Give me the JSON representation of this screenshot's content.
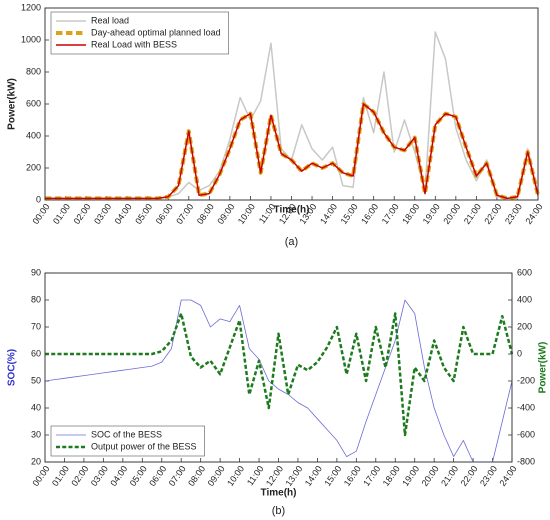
{
  "chart_data": [
    {
      "type": "line",
      "caption": "(a)",
      "x_label": "Time(h)",
      "y_label": "Power(kW)",
      "legend": "upper left",
      "x": [
        0,
        0.5,
        1,
        1.5,
        2,
        2.5,
        3,
        3.5,
        4,
        4.5,
        5,
        5.5,
        6,
        6.5,
        7,
        7.5,
        8,
        8.5,
        9,
        9.5,
        10,
        10.5,
        11,
        11.5,
        12,
        12.5,
        13,
        13.5,
        14,
        14.5,
        15,
        15.5,
        16,
        16.5,
        17,
        17.5,
        18,
        18.5,
        19,
        19.5,
        20,
        20.5,
        21,
        21.5,
        22,
        22.5,
        23,
        23.5,
        24
      ],
      "xlim": [
        0,
        24
      ],
      "xticks": [
        {
          "value": 0,
          "label": "00:00"
        },
        {
          "value": 1,
          "label": "01:00"
        },
        {
          "value": 2,
          "label": "02:00"
        },
        {
          "value": 3,
          "label": "03:00"
        },
        {
          "value": 4,
          "label": "04:00"
        },
        {
          "value": 5,
          "label": "05:00"
        },
        {
          "value": 6,
          "label": "06:00"
        },
        {
          "value": 7,
          "label": "07:00"
        },
        {
          "value": 8,
          "label": "08:00"
        },
        {
          "value": 9,
          "label": "09:00"
        },
        {
          "value": 10,
          "label": "10:00"
        },
        {
          "value": 11,
          "label": "11:00"
        },
        {
          "value": 12,
          "label": "12:00"
        },
        {
          "value": 13,
          "label": "13:00"
        },
        {
          "value": 14,
          "label": "14:00"
        },
        {
          "value": 15,
          "label": "15:00"
        },
        {
          "value": 16,
          "label": "16:00"
        },
        {
          "value": 17,
          "label": "17:00"
        },
        {
          "value": 18,
          "label": "18:00"
        },
        {
          "value": 19,
          "label": "19:00"
        },
        {
          "value": 20,
          "label": "20:00"
        },
        {
          "value": 21,
          "label": "21:00"
        },
        {
          "value": 22,
          "label": "22:00"
        },
        {
          "value": 23,
          "label": "23:00"
        },
        {
          "value": 24,
          "label": "24:00"
        }
      ],
      "ylim": [
        0,
        1200
      ],
      "yticks": [
        0,
        200,
        400,
        600,
        800,
        1000,
        1200
      ],
      "series": [
        {
          "name": "Real load",
          "color": "#c8c8c8",
          "width": 1.5,
          "dashed": false,
          "values": [
            10,
            10,
            10,
            10,
            10,
            10,
            10,
            10,
            10,
            10,
            10,
            10,
            20,
            40,
            110,
            60,
            90,
            180,
            380,
            640,
            500,
            620,
            980,
            320,
            250,
            470,
            320,
            250,
            330,
            90,
            80,
            640,
            420,
            800,
            300,
            500,
            300,
            60,
            1050,
            880,
            450,
            250,
            120,
            250,
            20,
            10,
            10,
            320,
            30
          ]
        },
        {
          "name": "Day-ahead optimal planned load",
          "color": "#d9a21b",
          "width": 4,
          "dashed": true,
          "values": [
            10,
            10,
            10,
            10,
            10,
            10,
            10,
            10,
            10,
            10,
            10,
            10,
            20,
            90,
            430,
            30,
            40,
            160,
            320,
            500,
            540,
            170,
            530,
            290,
            250,
            180,
            230,
            200,
            230,
            170,
            150,
            600,
            550,
            420,
            330,
            310,
            390,
            40,
            470,
            540,
            520,
            330,
            150,
            230,
            30,
            10,
            20,
            300,
            30
          ]
        },
        {
          "name": "Real Load with BESS",
          "color": "#cc0000",
          "width": 1.5,
          "dashed": false,
          "values": [
            10,
            10,
            10,
            10,
            10,
            10,
            10,
            10,
            10,
            10,
            10,
            10,
            20,
            90,
            430,
            30,
            40,
            160,
            320,
            500,
            540,
            170,
            530,
            290,
            250,
            180,
            230,
            200,
            230,
            170,
            150,
            600,
            550,
            420,
            330,
            310,
            390,
            40,
            470,
            540,
            520,
            330,
            150,
            230,
            30,
            10,
            20,
            300,
            30
          ]
        }
      ]
    },
    {
      "type": "line",
      "caption": "(b)",
      "x_label": "Time(h)",
      "y_label": "SOC(%)",
      "y2_label": "Power(kW)",
      "legend": "lower left",
      "y_label_color": "#3333cc",
      "y2_label_color": "#1d7a1d",
      "x": [
        0,
        0.5,
        1,
        1.5,
        2,
        2.5,
        3,
        3.5,
        4,
        4.5,
        5,
        5.5,
        6,
        6.5,
        7,
        7.5,
        8,
        8.5,
        9,
        9.5,
        10,
        10.5,
        11,
        11.5,
        12,
        12.5,
        13,
        13.5,
        14,
        14.5,
        15,
        15.5,
        16,
        16.5,
        17,
        17.5,
        18,
        18.5,
        19,
        19.5,
        20,
        20.5,
        21,
        21.5,
        22,
        22.5,
        23,
        23.5,
        24
      ],
      "xlim": [
        0,
        24
      ],
      "xticks": [
        {
          "value": 0,
          "label": "00:00"
        },
        {
          "value": 1,
          "label": "01:00"
        },
        {
          "value": 2,
          "label": "02:00"
        },
        {
          "value": 3,
          "label": "03:00"
        },
        {
          "value": 4,
          "label": "04:00"
        },
        {
          "value": 5,
          "label": "05:00"
        },
        {
          "value": 6,
          "label": "06:00"
        },
        {
          "value": 7,
          "label": "07:00"
        },
        {
          "value": 8,
          "label": "08:00"
        },
        {
          "value": 9,
          "label": "09:00"
        },
        {
          "value": 10,
          "label": "10:00"
        },
        {
          "value": 11,
          "label": "11:00"
        },
        {
          "value": 12,
          "label": "12:00"
        },
        {
          "value": 13,
          "label": "13:00"
        },
        {
          "value": 14,
          "label": "14:00"
        },
        {
          "value": 15,
          "label": "15:00"
        },
        {
          "value": 16,
          "label": "16:00"
        },
        {
          "value": 17,
          "label": "17:00"
        },
        {
          "value": 18,
          "label": "18:00"
        },
        {
          "value": 19,
          "label": "19:00"
        },
        {
          "value": 20,
          "label": "20:00"
        },
        {
          "value": 21,
          "label": "21:00"
        },
        {
          "value": 22,
          "label": "22:00"
        },
        {
          "value": 23,
          "label": "23:00"
        },
        {
          "value": 24,
          "label": "24:00"
        }
      ],
      "ylim": [
        20,
        90
      ],
      "yticks": [
        20,
        30,
        40,
        50,
        60,
        70,
        80,
        90
      ],
      "y2lim": [
        -800,
        600
      ],
      "y2ticks": [
        -800,
        -600,
        -400,
        -200,
        0,
        200,
        400,
        600
      ],
      "series": [
        {
          "name": "SOC of the BESS",
          "color": "#6b6bd6",
          "width": 0.8,
          "dashed": false,
          "values": [
            50,
            50.5,
            51,
            51.5,
            52,
            52.5,
            53,
            53.5,
            54,
            54.5,
            55,
            55.5,
            57,
            62,
            80,
            80,
            78,
            70,
            73,
            72,
            78,
            62,
            58,
            50,
            47,
            45,
            42,
            40,
            36,
            32,
            28,
            22,
            24,
            35,
            45,
            55,
            65,
            80,
            75,
            55,
            40,
            30,
            22,
            28,
            20,
            20,
            20,
            35,
            50
          ]
        },
        {
          "name": "Output power of the BESS",
          "color": "#1d7a1d",
          "width": 2.5,
          "dashed": true,
          "axis": "y2",
          "values": [
            0,
            0,
            0,
            0,
            0,
            0,
            0,
            0,
            0,
            0,
            0,
            0,
            20,
            100,
            300,
            -20,
            -100,
            -50,
            -150,
            50,
            250,
            -300,
            -50,
            -400,
            150,
            -300,
            -80,
            -120,
            -60,
            50,
            200,
            -150,
            150,
            -200,
            200,
            -100,
            300,
            -600,
            -100,
            -200,
            100,
            -100,
            -200,
            200,
            0,
            0,
            0,
            280,
            0
          ]
        }
      ]
    }
  ]
}
